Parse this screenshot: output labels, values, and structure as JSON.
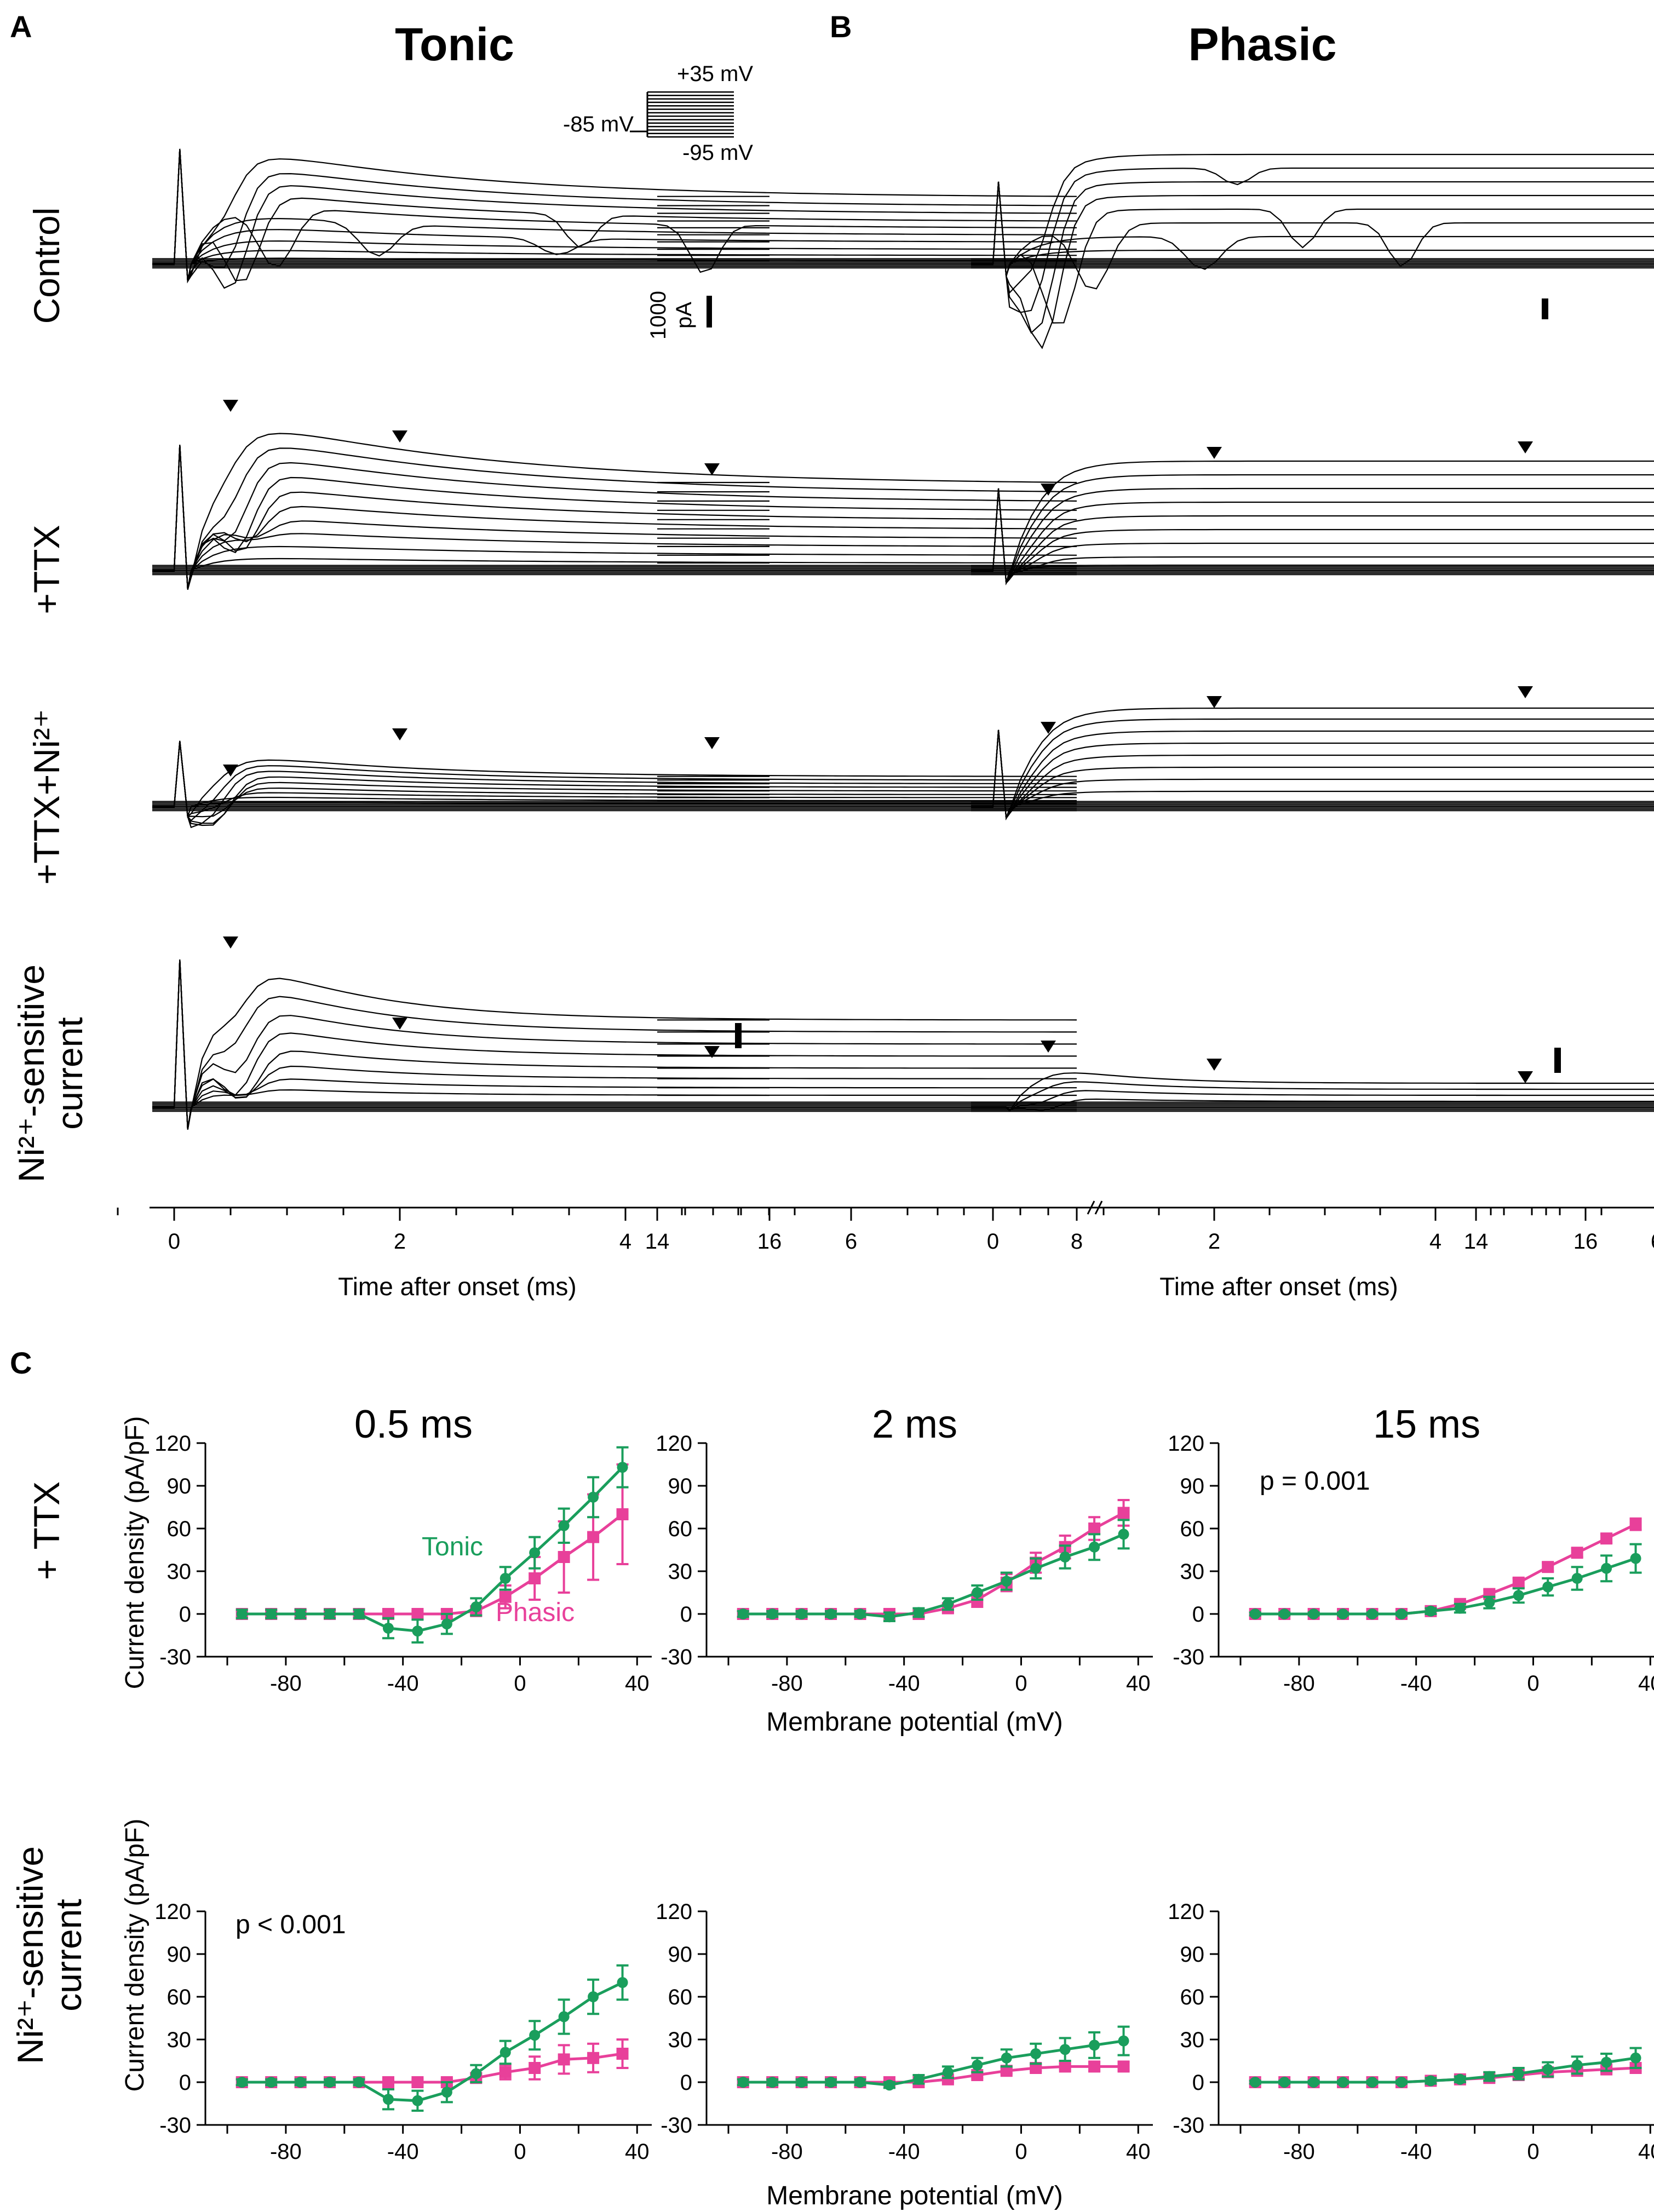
{
  "figure": {
    "panel_labels": {
      "a": "A",
      "b": "B",
      "c": "C"
    },
    "column_titles": {
      "tonic": "Tonic",
      "phasic": "Phasic"
    },
    "row_labels": {
      "control": "Control",
      "ttx": "+TTX",
      "ttx_ni": "+TTX+Ni²⁺",
      "ni_sensitive_1": "Ni²⁺-sensitive",
      "ni_sensitive_2": "current"
    },
    "protocol": {
      "hold": "-85 mV",
      "top": "+35 mV",
      "bottom": "-95 mV"
    },
    "scale_bar": {
      "value": "1000",
      "unit": "pA"
    },
    "time_axis": {
      "ticks_left": [
        "0",
        "2",
        "4",
        "6",
        "8"
      ],
      "ticks_right": [
        "14",
        "16"
      ],
      "title": "Time after onset (ms)"
    },
    "iv_section": {
      "time_titles": [
        "0.5 ms",
        "2 ms",
        "15 ms"
      ],
      "row_labels": {
        "ttx": "+ TTX",
        "ni_1": "Ni²⁺-sensitive",
        "ni_2": "current"
      },
      "ylabel": "Current density (pA/pF)",
      "xlabel": "Membrane potential (mV)",
      "x_ticks": [
        "-80",
        "-40",
        "0",
        "40"
      ],
      "y_ticks": [
        "120",
        "90",
        "60",
        "30",
        "0",
        "-30"
      ],
      "p_values": {
        "ttx_15ms": "p = 0.001",
        "ni_05ms": "p < 0.001"
      },
      "series_labels": {
        "tonic": "Tonic",
        "phasic": "Phasic"
      }
    },
    "colors": {
      "tonic": "#1a9e5c",
      "phasic": "#e8409a",
      "trace": "#000000"
    }
  },
  "chart_data": [
    {
      "type": "line",
      "title": "+ TTX, 0.5 ms",
      "xlabel": "Membrane potential (mV)",
      "ylabel": "Current density (pA/pF)",
      "xlim": [
        -100,
        45
      ],
      "ylim": [
        -30,
        120
      ],
      "x": [
        -95,
        -85,
        -75,
        -65,
        -55,
        -45,
        -35,
        -25,
        -15,
        -5,
        5,
        15,
        25,
        35
      ],
      "series": [
        {
          "name": "Tonic",
          "values": [
            0,
            0,
            0,
            0,
            0,
            -10,
            -12,
            -7,
            5,
            25,
            43,
            62,
            82,
            103
          ],
          "errors": [
            3,
            3,
            3,
            3,
            3,
            7,
            8,
            7,
            6,
            8,
            11,
            12,
            14,
            14
          ]
        },
        {
          "name": "Phasic",
          "values": [
            0,
            0,
            0,
            0,
            0,
            0,
            0,
            0,
            2,
            12,
            25,
            40,
            54,
            70
          ],
          "errors": [
            2,
            2,
            2,
            2,
            2,
            2,
            2,
            3,
            3,
            8,
            15,
            25,
            30,
            35
          ]
        }
      ],
      "annotations": [
        "Tonic",
        "Phasic"
      ]
    },
    {
      "type": "line",
      "title": "+ TTX, 2 ms",
      "xlabel": "Membrane potential (mV)",
      "ylabel": "",
      "xlim": [
        -100,
        45
      ],
      "ylim": [
        -30,
        120
      ],
      "x": [
        -95,
        -85,
        -75,
        -65,
        -55,
        -45,
        -35,
        -25,
        -15,
        -5,
        5,
        15,
        25,
        35
      ],
      "series": [
        {
          "name": "Tonic",
          "values": [
            0,
            0,
            0,
            0,
            0,
            -2,
            1,
            7,
            15,
            23,
            32,
            40,
            47,
            56
          ],
          "errors": [
            2,
            2,
            2,
            2,
            2,
            3,
            3,
            4,
            5,
            6,
            7,
            8,
            9,
            10
          ]
        },
        {
          "name": "Phasic",
          "values": [
            0,
            0,
            0,
            0,
            0,
            0,
            0,
            4,
            10,
            22,
            36,
            47,
            60,
            71
          ],
          "errors": [
            2,
            2,
            2,
            2,
            2,
            2,
            2,
            3,
            5,
            6,
            7,
            8,
            8,
            9
          ]
        }
      ]
    },
    {
      "type": "line",
      "title": "+ TTX, 15 ms",
      "xlabel": "",
      "ylabel": "",
      "xlim": [
        -100,
        45
      ],
      "ylim": [
        -30,
        120
      ],
      "x": [
        -95,
        -85,
        -75,
        -65,
        -55,
        -45,
        -35,
        -25,
        -15,
        -5,
        5,
        15,
        25,
        35
      ],
      "series": [
        {
          "name": "Tonic",
          "values": [
            0,
            0,
            0,
            0,
            0,
            0,
            2,
            4,
            8,
            13,
            19,
            25,
            32,
            39
          ],
          "errors": [
            1,
            1,
            1,
            1,
            1,
            1,
            2,
            3,
            4,
            5,
            6,
            8,
            9,
            10
          ]
        },
        {
          "name": "Phasic",
          "values": [
            0,
            0,
            0,
            0,
            0,
            0,
            2,
            7,
            14,
            22,
            33,
            43,
            53,
            63
          ],
          "errors": [
            1,
            1,
            1,
            1,
            1,
            1,
            2,
            2,
            3,
            3,
            3,
            3,
            3,
            4
          ]
        }
      ],
      "annotations": [
        "p = 0.001"
      ]
    },
    {
      "type": "line",
      "title": "Ni²⁺-sensitive current, 0.5 ms",
      "xlabel": "Membrane potential (mV)",
      "ylabel": "Current density (pA/pF)",
      "xlim": [
        -100,
        45
      ],
      "ylim": [
        -30,
        120
      ],
      "x": [
        -95,
        -85,
        -75,
        -65,
        -55,
        -45,
        -35,
        -25,
        -15,
        -5,
        5,
        15,
        25,
        35
      ],
      "series": [
        {
          "name": "Tonic",
          "values": [
            0,
            0,
            0,
            0,
            0,
            -12,
            -13,
            -7,
            6,
            21,
            33,
            46,
            60,
            70
          ],
          "errors": [
            2,
            2,
            2,
            2,
            2,
            7,
            7,
            7,
            6,
            8,
            10,
            12,
            12,
            12
          ]
        },
        {
          "name": "Phasic",
          "values": [
            0,
            0,
            0,
            0,
            0,
            0,
            0,
            0,
            3,
            7,
            10,
            16,
            17,
            20
          ],
          "errors": [
            2,
            2,
            2,
            2,
            2,
            2,
            2,
            2,
            3,
            5,
            8,
            10,
            10,
            10
          ]
        }
      ],
      "annotations": [
        "p < 0.001"
      ]
    },
    {
      "type": "line",
      "title": "Ni²⁺-sensitive current, 2 ms",
      "xlabel": "Membrane potential (mV)",
      "ylabel": "",
      "xlim": [
        -100,
        45
      ],
      "ylim": [
        -30,
        120
      ],
      "x": [
        -95,
        -85,
        -75,
        -65,
        -55,
        -45,
        -35,
        -25,
        -15,
        -5,
        5,
        15,
        25,
        35
      ],
      "series": [
        {
          "name": "Tonic",
          "values": [
            0,
            0,
            0,
            0,
            0,
            -2,
            2,
            7,
            12,
            17,
            20,
            23,
            26,
            29
          ],
          "errors": [
            2,
            2,
            2,
            2,
            2,
            2,
            3,
            4,
            5,
            6,
            7,
            8,
            9,
            10
          ]
        },
        {
          "name": "Phasic",
          "values": [
            0,
            0,
            0,
            0,
            0,
            0,
            0,
            2,
            5,
            8,
            10,
            11,
            11,
            11
          ],
          "errors": [
            1,
            1,
            1,
            1,
            1,
            1,
            1,
            2,
            2,
            2,
            2,
            2,
            3,
            3
          ]
        }
      ]
    },
    {
      "type": "line",
      "title": "Ni²⁺-sensitive current, 15 ms",
      "xlabel": "",
      "ylabel": "",
      "xlim": [
        -100,
        45
      ],
      "ylim": [
        -30,
        120
      ],
      "x": [
        -95,
        -85,
        -75,
        -65,
        -55,
        -45,
        -35,
        -25,
        -15,
        -5,
        5,
        15,
        25,
        35
      ],
      "series": [
        {
          "name": "Tonic",
          "values": [
            0,
            0,
            0,
            0,
            0,
            0,
            1,
            2,
            4,
            6,
            9,
            12,
            14,
            17
          ],
          "errors": [
            1,
            1,
            1,
            1,
            1,
            1,
            2,
            2,
            3,
            4,
            5,
            6,
            6,
            7
          ]
        },
        {
          "name": "Phasic",
          "values": [
            0,
            0,
            0,
            0,
            0,
            0,
            1,
            2,
            3,
            5,
            7,
            8,
            9,
            10
          ],
          "errors": [
            1,
            1,
            1,
            1,
            1,
            1,
            1,
            2,
            2,
            2,
            2,
            2,
            2,
            2
          ]
        }
      ]
    }
  ]
}
